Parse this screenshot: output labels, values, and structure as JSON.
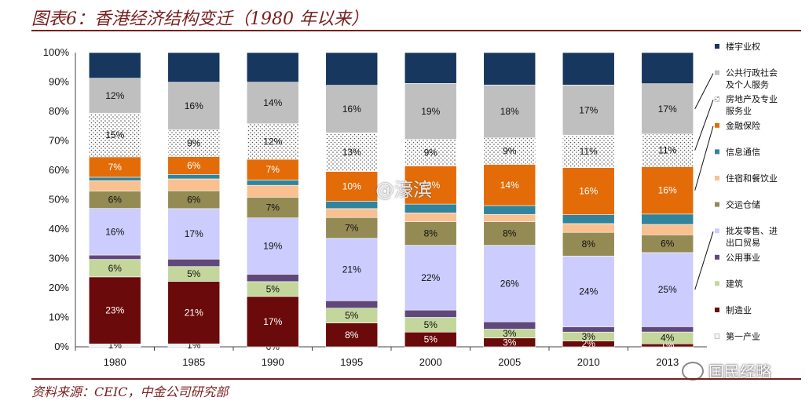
{
  "title": "图表6：香港经济结构变迁（1980 年以来）",
  "source": "资料来源：CEIC，中金公司研究部",
  "watermarks": {
    "center": "@濠滨",
    "bottom_right": "国民经略"
  },
  "chart_data": {
    "type": "bar",
    "stacked": true,
    "categories": [
      "1980",
      "1985",
      "1990",
      "1995",
      "2000",
      "2005",
      "2010",
      "2013"
    ],
    "yticks": [
      "0%",
      "10%",
      "20%",
      "30%",
      "40%",
      "50%",
      "60%",
      "70%",
      "80%",
      "90%",
      "100%"
    ],
    "ylim": [
      0,
      100
    ],
    "legend_position": "right",
    "series": [
      {
        "name": "第一产业",
        "color": "#f2f2f2",
        "pattern": "none",
        "values": [
          1,
          1,
          0,
          0,
          0,
          0,
          0,
          0
        ],
        "labels": [
          "1%",
          "1%",
          "0%",
          "",
          "",
          "",
          "",
          ""
        ]
      },
      {
        "name": "制造业",
        "color": "#6b0a0a",
        "pattern": "none",
        "values": [
          23,
          21,
          17,
          8,
          5,
          3,
          2,
          1
        ],
        "labels": [
          "23%",
          "21%",
          "17%",
          "8%",
          "5%",
          "3%",
          "2%",
          "1%"
        ]
      },
      {
        "name": "建筑",
        "color": "#c3d69b",
        "pattern": "none",
        "values": [
          6,
          5,
          5,
          5,
          5,
          3,
          3,
          4
        ],
        "labels": [
          "6%",
          "5%",
          "5%",
          "5%",
          "5%",
          "3%",
          "3%",
          "4%"
        ]
      },
      {
        "name": "公用事业",
        "color": "#60497a",
        "pattern": "none",
        "values": [
          1.5,
          2.5,
          2.5,
          2.5,
          2.5,
          2.5,
          1.8,
          1.8
        ],
        "labels": [
          "",
          "",
          "",
          "",
          "",
          "",
          "",
          ""
        ]
      },
      {
        "name": "批发零售、进出口贸易",
        "color": "#ccccff",
        "pattern": "none",
        "values": [
          16,
          17,
          19,
          21,
          22,
          26,
          24,
          25
        ],
        "labels": [
          "16%",
          "17%",
          "19%",
          "21%",
          "22%",
          "26%",
          "24%",
          "25%"
        ]
      },
      {
        "name": "交运仓储",
        "color": "#948a54",
        "pattern": "none",
        "values": [
          6,
          6,
          7,
          7,
          8,
          8,
          8,
          6
        ],
        "labels": [
          "6%",
          "6%",
          "7%",
          "7%",
          "8%",
          "8%",
          "8%",
          "6%"
        ]
      },
      {
        "name": "住宿和餐饮业",
        "color": "#fac090",
        "pattern": "none",
        "values": [
          3.5,
          4,
          4,
          3,
          3,
          2.5,
          3,
          3.5
        ],
        "labels": [
          "",
          "",
          "",
          "",
          "",
          "",
          "",
          ""
        ]
      },
      {
        "name": "信息通信",
        "color": "#31849b",
        "pattern": "none",
        "values": [
          1.2,
          1.5,
          1.8,
          2.5,
          3,
          3,
          3,
          3.5
        ],
        "labels": [
          "",
          "",
          "",
          "",
          "",
          "",
          "",
          ""
        ]
      },
      {
        "name": "金融保险",
        "color": "#e36c09",
        "pattern": "none",
        "values": [
          7,
          6,
          7,
          10,
          13,
          14,
          16,
          16
        ],
        "labels": [
          "7%",
          "6%",
          "7%",
          "10%",
          "13%",
          "14%",
          "16%",
          "16%"
        ]
      },
      {
        "name": "房地产及专业服务业",
        "color": "#ffffff",
        "pattern": "dots",
        "values": [
          15,
          9,
          12,
          13,
          9,
          9,
          11,
          11
        ],
        "labels": [
          "15%",
          "9%",
          "12%",
          "13%",
          "9%",
          "9%",
          "11%",
          "11%"
        ]
      },
      {
        "name": "公共行政社会及个人服务",
        "color": "#bfbfbf",
        "pattern": "none",
        "values": [
          12,
          16,
          14,
          16,
          19,
          18,
          17,
          17
        ],
        "labels": [
          "12%",
          "16%",
          "14%",
          "16%",
          "19%",
          "18%",
          "17%",
          "17%"
        ]
      },
      {
        "name": "楼宇业权",
        "color": "#17375e",
        "pattern": "none",
        "values": [
          8.8,
          10,
          10,
          11,
          10.5,
          11,
          11,
          10.5
        ],
        "labels": [
          "",
          "",
          "",
          "",
          "",
          "",
          "",
          ""
        ]
      }
    ],
    "legend": [
      {
        "lines": [
          "楼宇业权"
        ],
        "series": 11
      },
      {
        "lines": [
          "公共行政社会",
          "及个人服务"
        ],
        "series": 10
      },
      {
        "lines": [
          "房地产及专业",
          "服务业"
        ],
        "series": 9
      },
      {
        "lines": [
          "金融保险"
        ],
        "series": 8
      },
      {
        "lines": [
          "信息通信"
        ],
        "series": 7
      },
      {
        "lines": [
          "住宿和餐饮业"
        ],
        "series": 6
      },
      {
        "lines": [
          "交运仓储"
        ],
        "series": 5
      },
      {
        "lines": [
          "批发零售、进",
          "出口贸易"
        ],
        "series": 4
      },
      {
        "lines": [
          "公用事业"
        ],
        "series": 3
      },
      {
        "lines": [
          "建筑"
        ],
        "series": 2
      },
      {
        "lines": [
          "制造业"
        ],
        "series": 1
      },
      {
        "lines": [
          "第一产业"
        ],
        "series": 0
      }
    ]
  }
}
